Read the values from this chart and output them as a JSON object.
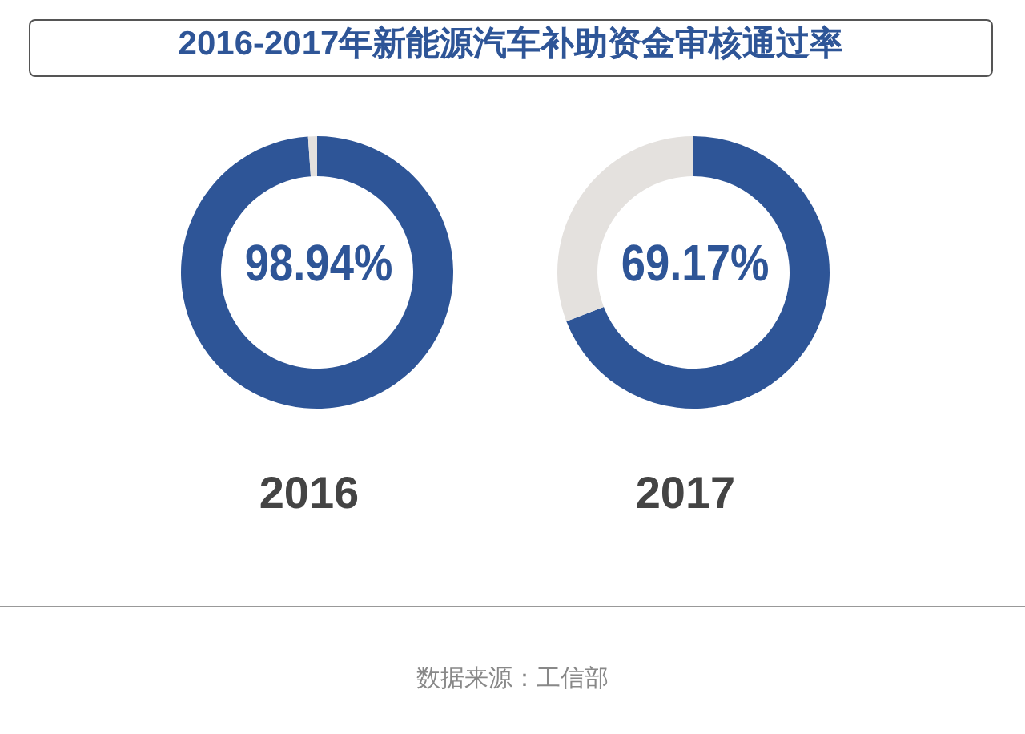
{
  "chart_data": [
    {
      "type": "donut",
      "title": "2016-2017年新能源汽车补助资金审核通过率",
      "xlabel": "2016",
      "categories": [
        null,
        null
      ],
      "values": [
        98.94,
        1.06
      ],
      "colors": [
        "#2e5597",
        "#e4e1de"
      ],
      "value_labels": [
        "98.94%",
        null
      ]
    },
    {
      "type": "donut",
      "xlabel": "2017",
      "categories": [
        null,
        null
      ],
      "values": [
        69.17,
        30.83
      ],
      "colors": [
        "#2e5597",
        "#e4e1de"
      ],
      "value_labels": [
        "69.17%",
        null
      ],
      "annotations": [
        "数据来源：工信部"
      ]
    }
  ]
}
